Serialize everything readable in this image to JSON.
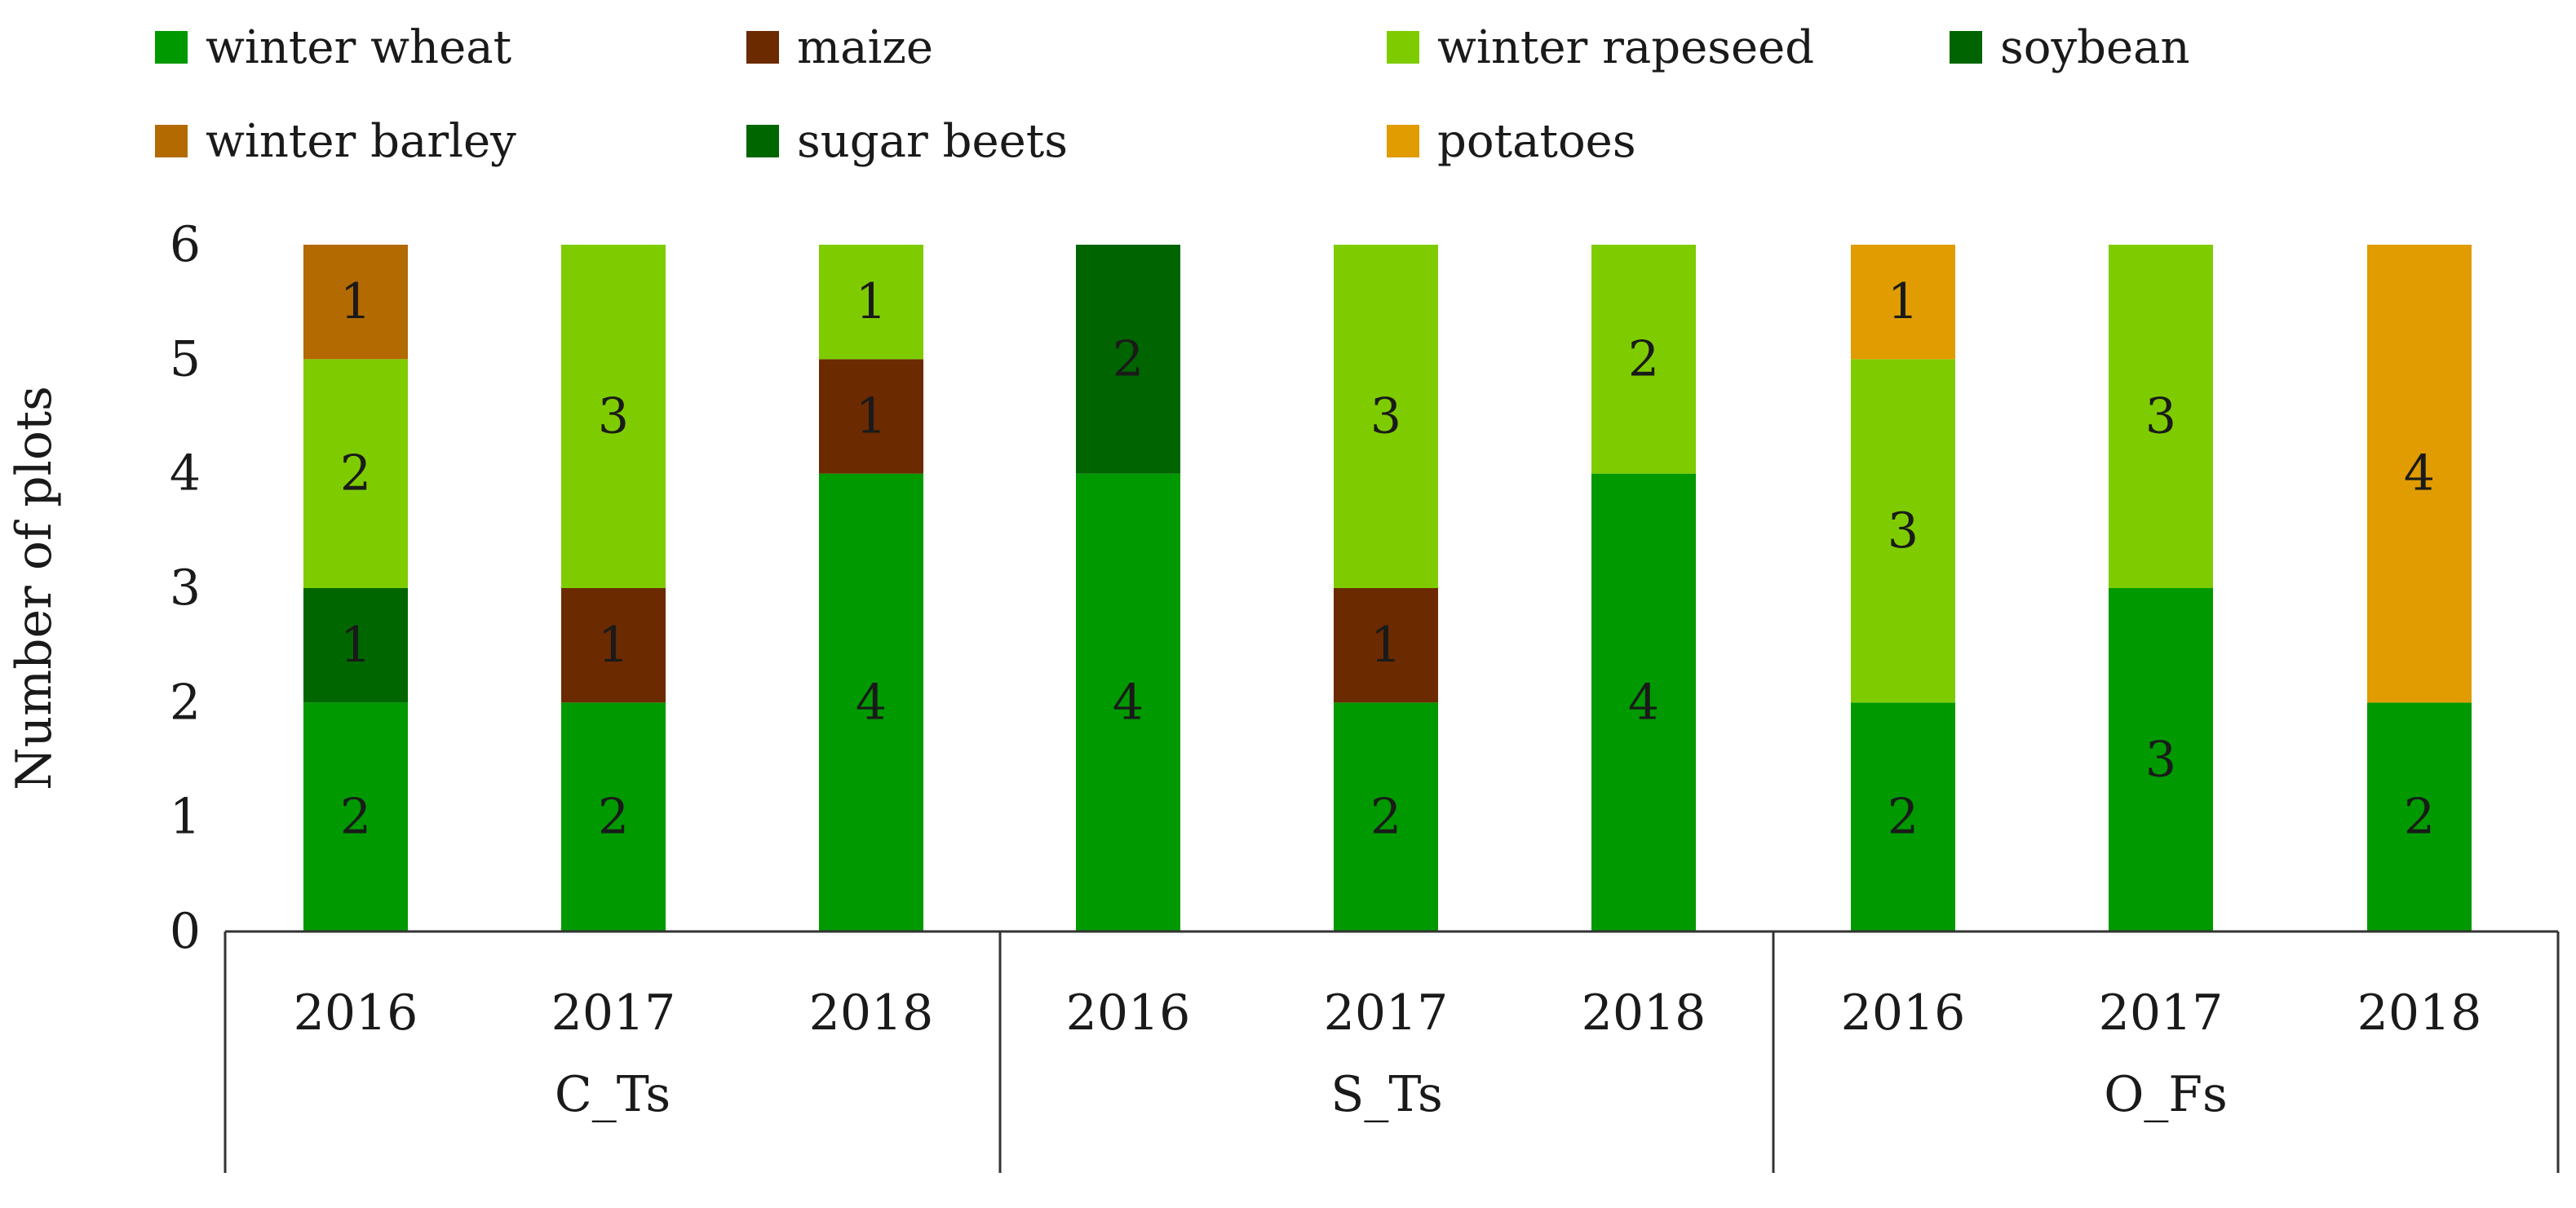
{
  "chart_data": {
    "type": "bar",
    "stacked": true,
    "title": "",
    "xlabel": "",
    "ylabel": "Number of plots",
    "ylim": [
      0,
      6
    ],
    "yticks": [
      0,
      1,
      2,
      3,
      4,
      5,
      6
    ],
    "grid": false,
    "groups": [
      {
        "name": "C_Ts",
        "years": [
          "2016",
          "2017",
          "2018"
        ]
      },
      {
        "name": "S_Ts",
        "years": [
          "2016",
          "2017",
          "2018"
        ]
      },
      {
        "name": "O_Fs",
        "years": [
          "2016",
          "2017",
          "2018"
        ]
      }
    ],
    "legend_position": "top",
    "legend_order": [
      "winter wheat",
      "maize",
      "winter rapeseed",
      "soybean",
      "winter barley",
      "sugar beets",
      "potatoes"
    ],
    "series": [
      {
        "name": "winter wheat",
        "color": "#009900",
        "values": [
          2,
          2,
          4,
          4,
          2,
          4,
          2,
          3,
          2
        ]
      },
      {
        "name": "maize",
        "color": "#6b2a00",
        "values": [
          0,
          1,
          1,
          0,
          1,
          0,
          0,
          0,
          0
        ]
      },
      {
        "name": "sugar beets",
        "color": "#006600",
        "values": [
          1,
          0,
          0,
          0,
          0,
          0,
          0,
          0,
          0
        ]
      },
      {
        "name": "winter rapeseed",
        "color": "#7ecc00",
        "values": [
          2,
          3,
          1,
          0,
          3,
          2,
          3,
          3,
          0
        ]
      },
      {
        "name": "soybean",
        "color": "#006400",
        "values": [
          0,
          0,
          0,
          2,
          0,
          0,
          0,
          0,
          0
        ]
      },
      {
        "name": "winter barley",
        "color": "#b36a00",
        "values": [
          1,
          0,
          0,
          0,
          0,
          0,
          0,
          0,
          0
        ]
      },
      {
        "name": "potatoes",
        "color": "#e09c00",
        "values": [
          0,
          0,
          0,
          0,
          0,
          0,
          1,
          0,
          4
        ]
      }
    ],
    "stack_order": [
      "winter wheat",
      "maize",
      "sugar beets",
      "winter rapeseed",
      "soybean",
      "winter barley",
      "potatoes"
    ]
  }
}
